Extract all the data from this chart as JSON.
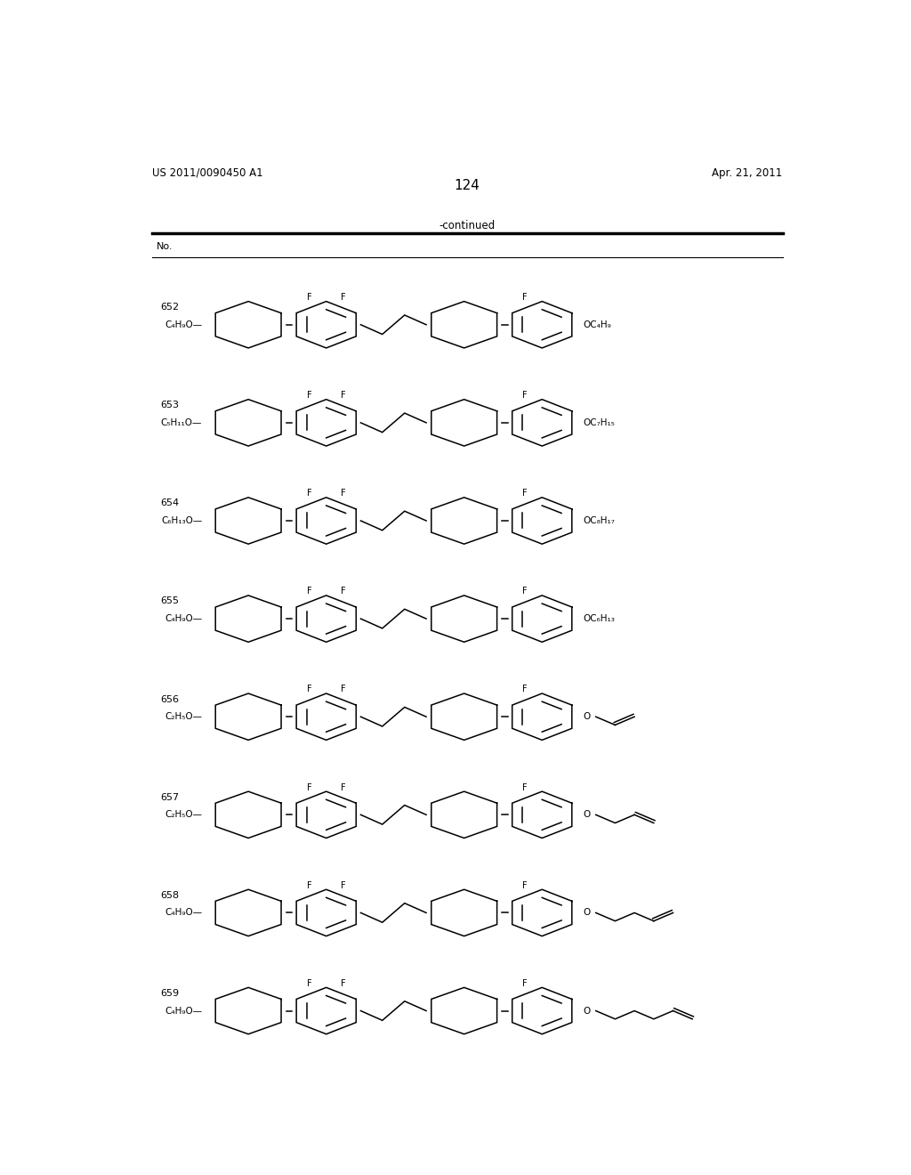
{
  "page_number": "124",
  "patent_number": "US 2011/0090450 A1",
  "patent_date": "Apr. 21, 2011",
  "continued_label": "-continued",
  "table_header": "No.",
  "compounds": [
    {
      "no": "652",
      "left": "C₄H₉O",
      "right": "OC₄H₉",
      "rtype": "alkoxy"
    },
    {
      "no": "653",
      "left": "C₅H₁₁O",
      "right": "OC₇H₁₅",
      "rtype": "alkoxy"
    },
    {
      "no": "654",
      "left": "C₆H₁₃O",
      "right": "OC₈H₁₇",
      "rtype": "alkoxy"
    },
    {
      "no": "655",
      "left": "C₄H₉O",
      "right": "OC₆H₁₃",
      "rtype": "alkoxy"
    },
    {
      "no": "656",
      "left": "C₂H₅O",
      "right": "",
      "rtype": "vinyl",
      "chain": 0
    },
    {
      "no": "657",
      "left": "C₂H₅O",
      "right": "",
      "rtype": "allyl",
      "chain": 1
    },
    {
      "no": "658",
      "left": "C₄H₉O",
      "right": "",
      "rtype": "butenyl",
      "chain": 2
    },
    {
      "no": "659",
      "left": "C₄H₉O",
      "right": "",
      "rtype": "pentenyl",
      "chain": 3
    }
  ],
  "bg_color": "#ffffff",
  "line_color": "#000000",
  "text_color": "#000000"
}
